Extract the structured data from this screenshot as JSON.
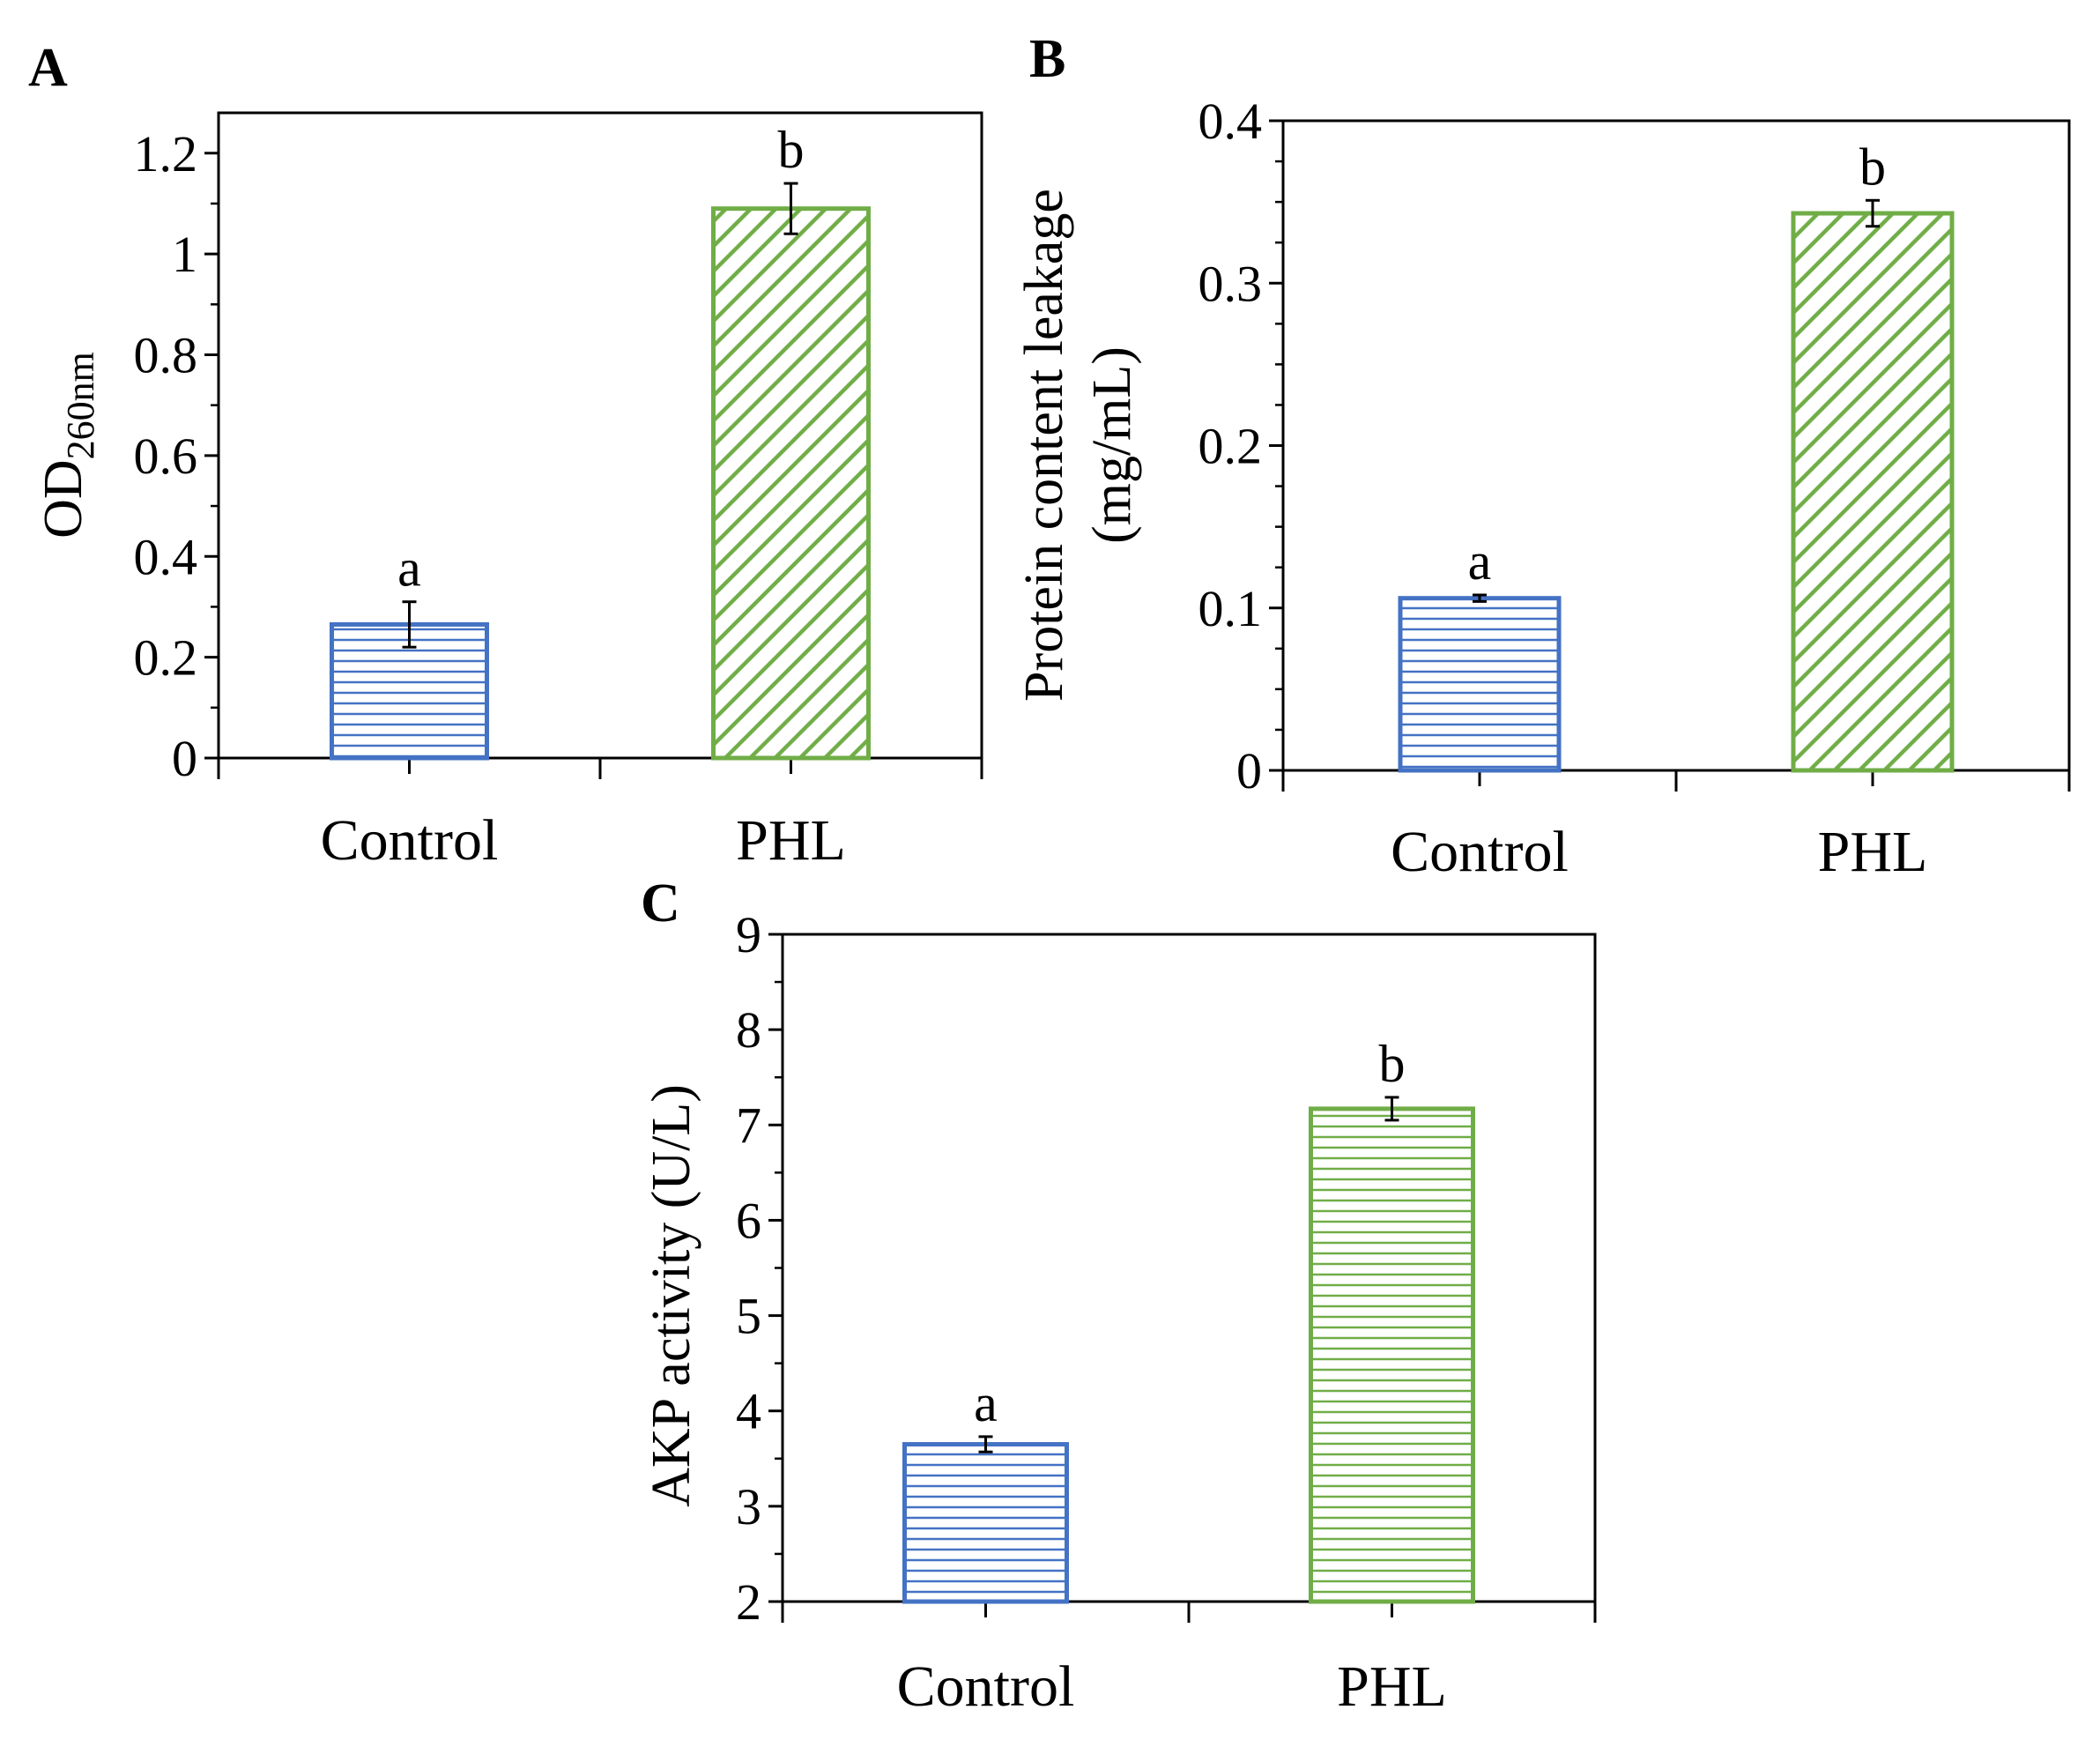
{
  "colors": {
    "control": "#4472C4",
    "phl": "#70AD47",
    "axis": "#000000",
    "background": "#ffffff"
  },
  "chart_data": [
    {
      "type": "bar",
      "panel": "A",
      "categories": [
        "Control",
        "PHL"
      ],
      "values": [
        0.265,
        1.09
      ],
      "errors": [
        0.045,
        0.05
      ],
      "significance": [
        "a",
        "b"
      ],
      "patterns": [
        "horizontal",
        "diagonal"
      ],
      "ylabel_main": "OD",
      "ylabel_sub": "260nm",
      "xlabel": "",
      "ylim": [
        0,
        1.28
      ],
      "yticks": [
        0,
        0.2,
        0.4,
        0.6,
        0.8,
        1,
        1.2
      ],
      "ytick_labels": [
        "0",
        "0.2",
        "0.4",
        "0.6",
        "0.8",
        "1",
        "1.2"
      ],
      "minor_step": 0.1
    },
    {
      "type": "bar",
      "panel": "B",
      "categories": [
        "Control",
        "PHL"
      ],
      "values": [
        0.106,
        0.343
      ],
      "errors": [
        0.002,
        0.008
      ],
      "significance": [
        "a",
        "b"
      ],
      "patterns": [
        "horizontal",
        "diagonal"
      ],
      "ylabel_line1": "Protein content leakage",
      "ylabel_line2": "(mg/mL)",
      "xlabel": "",
      "ylim": [
        0,
        0.4
      ],
      "yticks": [
        0,
        0.1,
        0.2,
        0.3,
        0.4
      ],
      "ytick_labels": [
        "0",
        "0.1",
        "0.2",
        "0.3",
        "0.4"
      ],
      "minor_step": 0.025
    },
    {
      "type": "bar",
      "panel": "C",
      "categories": [
        "Control",
        "PHL"
      ],
      "values": [
        3.65,
        7.17
      ],
      "errors": [
        0.08,
        0.12
      ],
      "significance": [
        "a",
        "b"
      ],
      "patterns": [
        "horizontal",
        "horizontal"
      ],
      "ylabel": "AKP activity (U/L)",
      "xlabel": "",
      "ylim": [
        2,
        9
      ],
      "yticks": [
        2,
        3,
        4,
        5,
        6,
        7,
        8,
        9
      ],
      "ytick_labels": [
        "2",
        "3",
        "4",
        "5",
        "6",
        "7",
        "8",
        "9"
      ],
      "minor_step": 0.5
    }
  ]
}
